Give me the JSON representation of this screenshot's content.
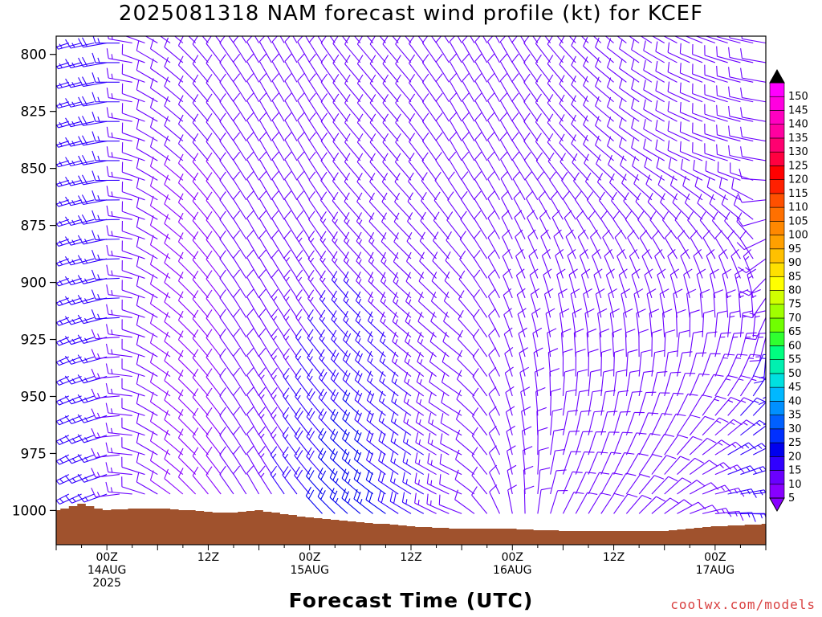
{
  "chart_data": {
    "type": "wind_barb_profile",
    "title": "2025081318 NAM forecast wind profile (kt) for KCEF",
    "xlabel": "Forecast Time (UTC)",
    "ylabel": "",
    "y_axis": {
      "ticks": [
        800,
        825,
        850,
        875,
        900,
        925,
        950,
        975,
        1000
      ],
      "ylim": [
        792,
        1015
      ],
      "inverted": true
    },
    "x_axis": {
      "tick_labels": [
        {
          "hour": 6,
          "lines": [
            "00Z",
            "14AUG",
            "2025"
          ]
        },
        {
          "hour": 18,
          "lines": [
            "12Z"
          ]
        },
        {
          "hour": 30,
          "lines": [
            "00Z",
            "15AUG"
          ]
        },
        {
          "hour": 42,
          "lines": [
            "12Z"
          ]
        },
        {
          "hour": 54,
          "lines": [
            "00Z",
            "16AUG"
          ]
        },
        {
          "hour": 66,
          "lines": [
            "12Z"
          ]
        },
        {
          "hour": 78,
          "lines": [
            "00Z",
            "17AUG"
          ]
        }
      ],
      "xlim": [
        0,
        84
      ]
    },
    "colorbar": {
      "levels": [
        5,
        10,
        15,
        20,
        25,
        30,
        35,
        40,
        45,
        50,
        55,
        60,
        65,
        70,
        75,
        80,
        85,
        90,
        95,
        100,
        105,
        110,
        115,
        120,
        125,
        130,
        135,
        140,
        145,
        150
      ],
      "colors": [
        "#8800ff",
        "#6a00ff",
        "#3000ff",
        "#0000ee",
        "#0030ff",
        "#0060ff",
        "#0090ff",
        "#00b8ff",
        "#00e0e0",
        "#00f0b0",
        "#00ff80",
        "#30ff30",
        "#70ff00",
        "#a0ff00",
        "#d0ff00",
        "#ffff00",
        "#ffe000",
        "#ffc000",
        "#ffa000",
        "#ff8800",
        "#ff7000",
        "#ff5000",
        "#ff2000",
        "#ff0000",
        "#ff0040",
        "#ff0070",
        "#ff00a0",
        "#ff00c0",
        "#ff00e0",
        "#ff00ff"
      ]
    },
    "terrain_color": "#a0522d",
    "surface_pressure": [
      {
        "hour": 0,
        "p": 1000
      },
      {
        "hour": 3,
        "p": 997
      },
      {
        "hour": 6,
        "p": 1000
      },
      {
        "hour": 9,
        "p": 999
      },
      {
        "hour": 12,
        "p": 999
      },
      {
        "hour": 16,
        "p": 1000
      },
      {
        "hour": 20,
        "p": 1001
      },
      {
        "hour": 24,
        "p": 1000
      },
      {
        "hour": 30,
        "p": 1003
      },
      {
        "hour": 36,
        "p": 1005
      },
      {
        "hour": 42,
        "p": 1007
      },
      {
        "hour": 48,
        "p": 1008
      },
      {
        "hour": 54,
        "p": 1008
      },
      {
        "hour": 60,
        "p": 1009
      },
      {
        "hour": 66,
        "p": 1009
      },
      {
        "hour": 72,
        "p": 1009
      },
      {
        "hour": 78,
        "p": 1007
      },
      {
        "hour": 84,
        "p": 1006
      }
    ],
    "wind_regime_keyframes": [
      {
        "hour": 0,
        "lower_dir": 240,
        "lower_spd": 20,
        "upper_dir": 250,
        "upper_spd": 15
      },
      {
        "hour": 6,
        "lower_dir": 250,
        "lower_spd": 15,
        "upper_dir": 260,
        "upper_spd": 18
      },
      {
        "hour": 12,
        "lower_dir": 300,
        "lower_spd": 10,
        "upper_dir": 300,
        "upper_spd": 10
      },
      {
        "hour": 18,
        "lower_dir": 320,
        "lower_spd": 8,
        "upper_dir": 320,
        "upper_spd": 10
      },
      {
        "hour": 24,
        "lower_dir": 330,
        "lower_spd": 12,
        "upper_dir": 330,
        "upper_spd": 10
      },
      {
        "hour": 30,
        "lower_dir": 320,
        "lower_spd": 20,
        "upper_dir": 330,
        "upper_spd": 10
      },
      {
        "hour": 36,
        "lower_dir": 310,
        "lower_spd": 25,
        "upper_dir": 320,
        "upper_spd": 10
      },
      {
        "hour": 42,
        "lower_dir": 300,
        "lower_spd": 18,
        "upper_dir": 320,
        "upper_spd": 10
      },
      {
        "hour": 48,
        "lower_dir": 290,
        "lower_spd": 12,
        "upper_dir": 330,
        "upper_spd": 10
      },
      {
        "hour": 54,
        "lower_dir": 350,
        "lower_spd": 10,
        "upper_dir": 330,
        "upper_spd": 10
      },
      {
        "hour": 60,
        "lower_dir": 30,
        "lower_spd": 10,
        "upper_dir": 320,
        "upper_spd": 10
      },
      {
        "hour": 66,
        "lower_dir": 40,
        "lower_spd": 10,
        "upper_dir": 310,
        "upper_spd": 10
      },
      {
        "hour": 72,
        "lower_dir": 60,
        "lower_spd": 10,
        "upper_dir": 300,
        "upper_spd": 10
      },
      {
        "hour": 78,
        "lower_dir": 90,
        "lower_spd": 15,
        "upper_dir": 290,
        "upper_spd": 10
      },
      {
        "hour": 84,
        "lower_dir": 100,
        "lower_spd": 20,
        "upper_dir": 280,
        "upper_spd": 10
      }
    ]
  },
  "footer": {
    "credit": "coolwx.com/models"
  }
}
